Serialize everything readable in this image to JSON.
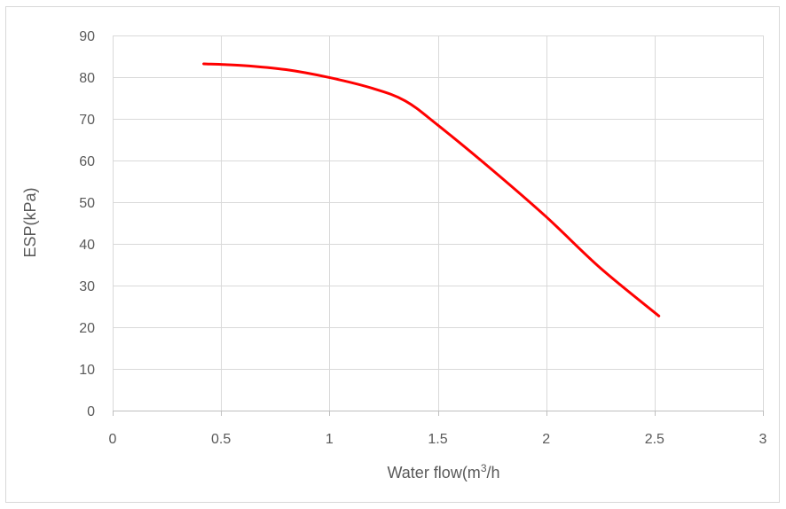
{
  "chart_data": {
    "type": "line",
    "title": "",
    "xlabel": "Water flow(m",
    "xlabel_sup": "3",
    "xlabel_tail": "/h",
    "ylabel": "ESP(kPa)",
    "xlim": [
      0,
      3
    ],
    "ylim": [
      0,
      90
    ],
    "x_ticks": [
      0,
      0.5,
      1,
      1.5,
      2,
      2.5,
      3
    ],
    "x_tick_labels": [
      "0",
      "0.5",
      "1",
      "1.5",
      "2",
      "2.5",
      "3"
    ],
    "y_ticks": [
      0,
      10,
      20,
      30,
      40,
      50,
      60,
      70,
      80,
      90
    ],
    "y_tick_labels": [
      "0",
      "10",
      "20",
      "30",
      "40",
      "50",
      "60",
      "70",
      "80",
      "90"
    ],
    "grid": true,
    "legend": "none",
    "series": [
      {
        "color": "#ff0000",
        "points": [
          {
            "x": 0.42,
            "y": 83.2
          },
          {
            "x": 0.6,
            "y": 82.8
          },
          {
            "x": 0.8,
            "y": 81.8
          },
          {
            "x": 1.0,
            "y": 79.9
          },
          {
            "x": 1.2,
            "y": 77.3
          },
          {
            "x": 1.35,
            "y": 74.3
          },
          {
            "x": 1.5,
            "y": 68.5
          },
          {
            "x": 1.75,
            "y": 57.8
          },
          {
            "x": 2.0,
            "y": 46.5
          },
          {
            "x": 2.25,
            "y": 34.2
          },
          {
            "x": 2.52,
            "y": 22.7
          }
        ]
      }
    ]
  }
}
